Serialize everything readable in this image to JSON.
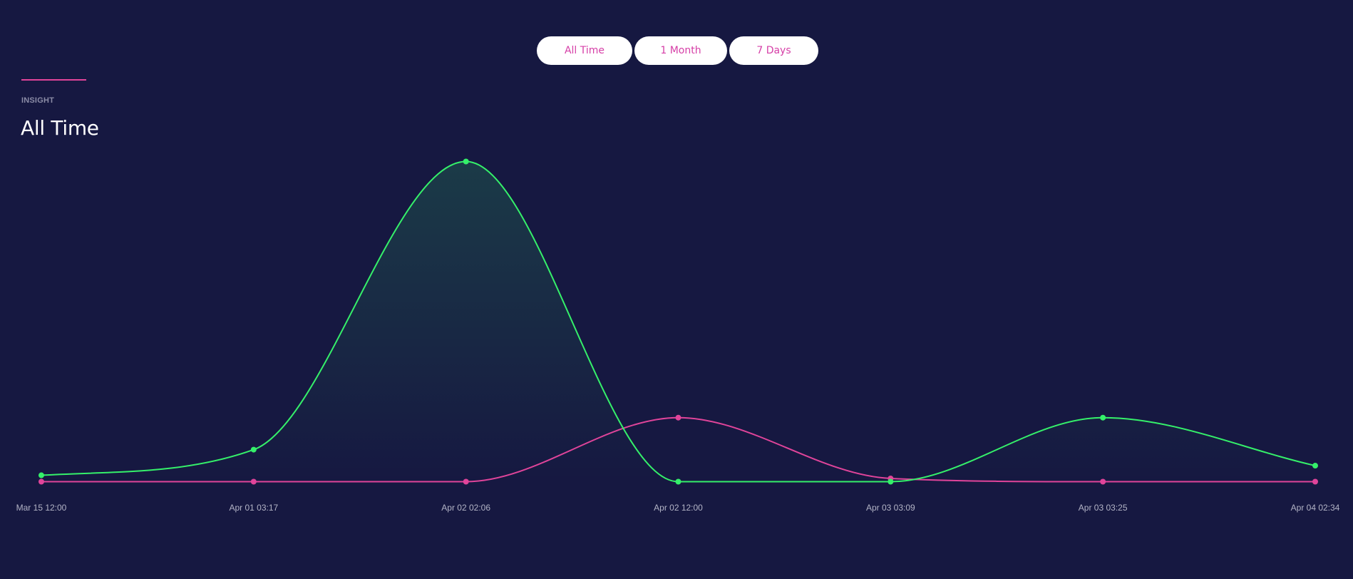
{
  "range_tabs": [
    {
      "label": "All Time"
    },
    {
      "label": "1 Month"
    },
    {
      "label": "7 Days"
    }
  ],
  "header": {
    "eyebrow": "INSIGHT",
    "title": "All Time"
  },
  "colors": {
    "background": "#161841",
    "accent": "#e0449a",
    "series_green": "#35f06a",
    "series_pink": "#e0449a",
    "tab_text": "#d63fa7"
  },
  "chart_data": {
    "type": "line",
    "x": [
      "Mar 15 12:00",
      "Apr 01 03:17",
      "Apr 02 02:06",
      "Apr 02 12:00",
      "Apr 03 03:09",
      "Apr 03 03:25",
      "Apr 04 02:34"
    ],
    "ylim": [
      0,
      10
    ],
    "grid": false,
    "legend": "none",
    "smooth": true,
    "series": [
      {
        "values": [
          0.2,
          1.0,
          10.0,
          0.0,
          0.0,
          2.0,
          0.5
        ],
        "color": "#35f06a",
        "fill": true
      },
      {
        "values": [
          0.0,
          0.0,
          0.0,
          2.0,
          0.1,
          0.0,
          0.0
        ],
        "color": "#e0449a",
        "fill": false
      }
    ]
  }
}
